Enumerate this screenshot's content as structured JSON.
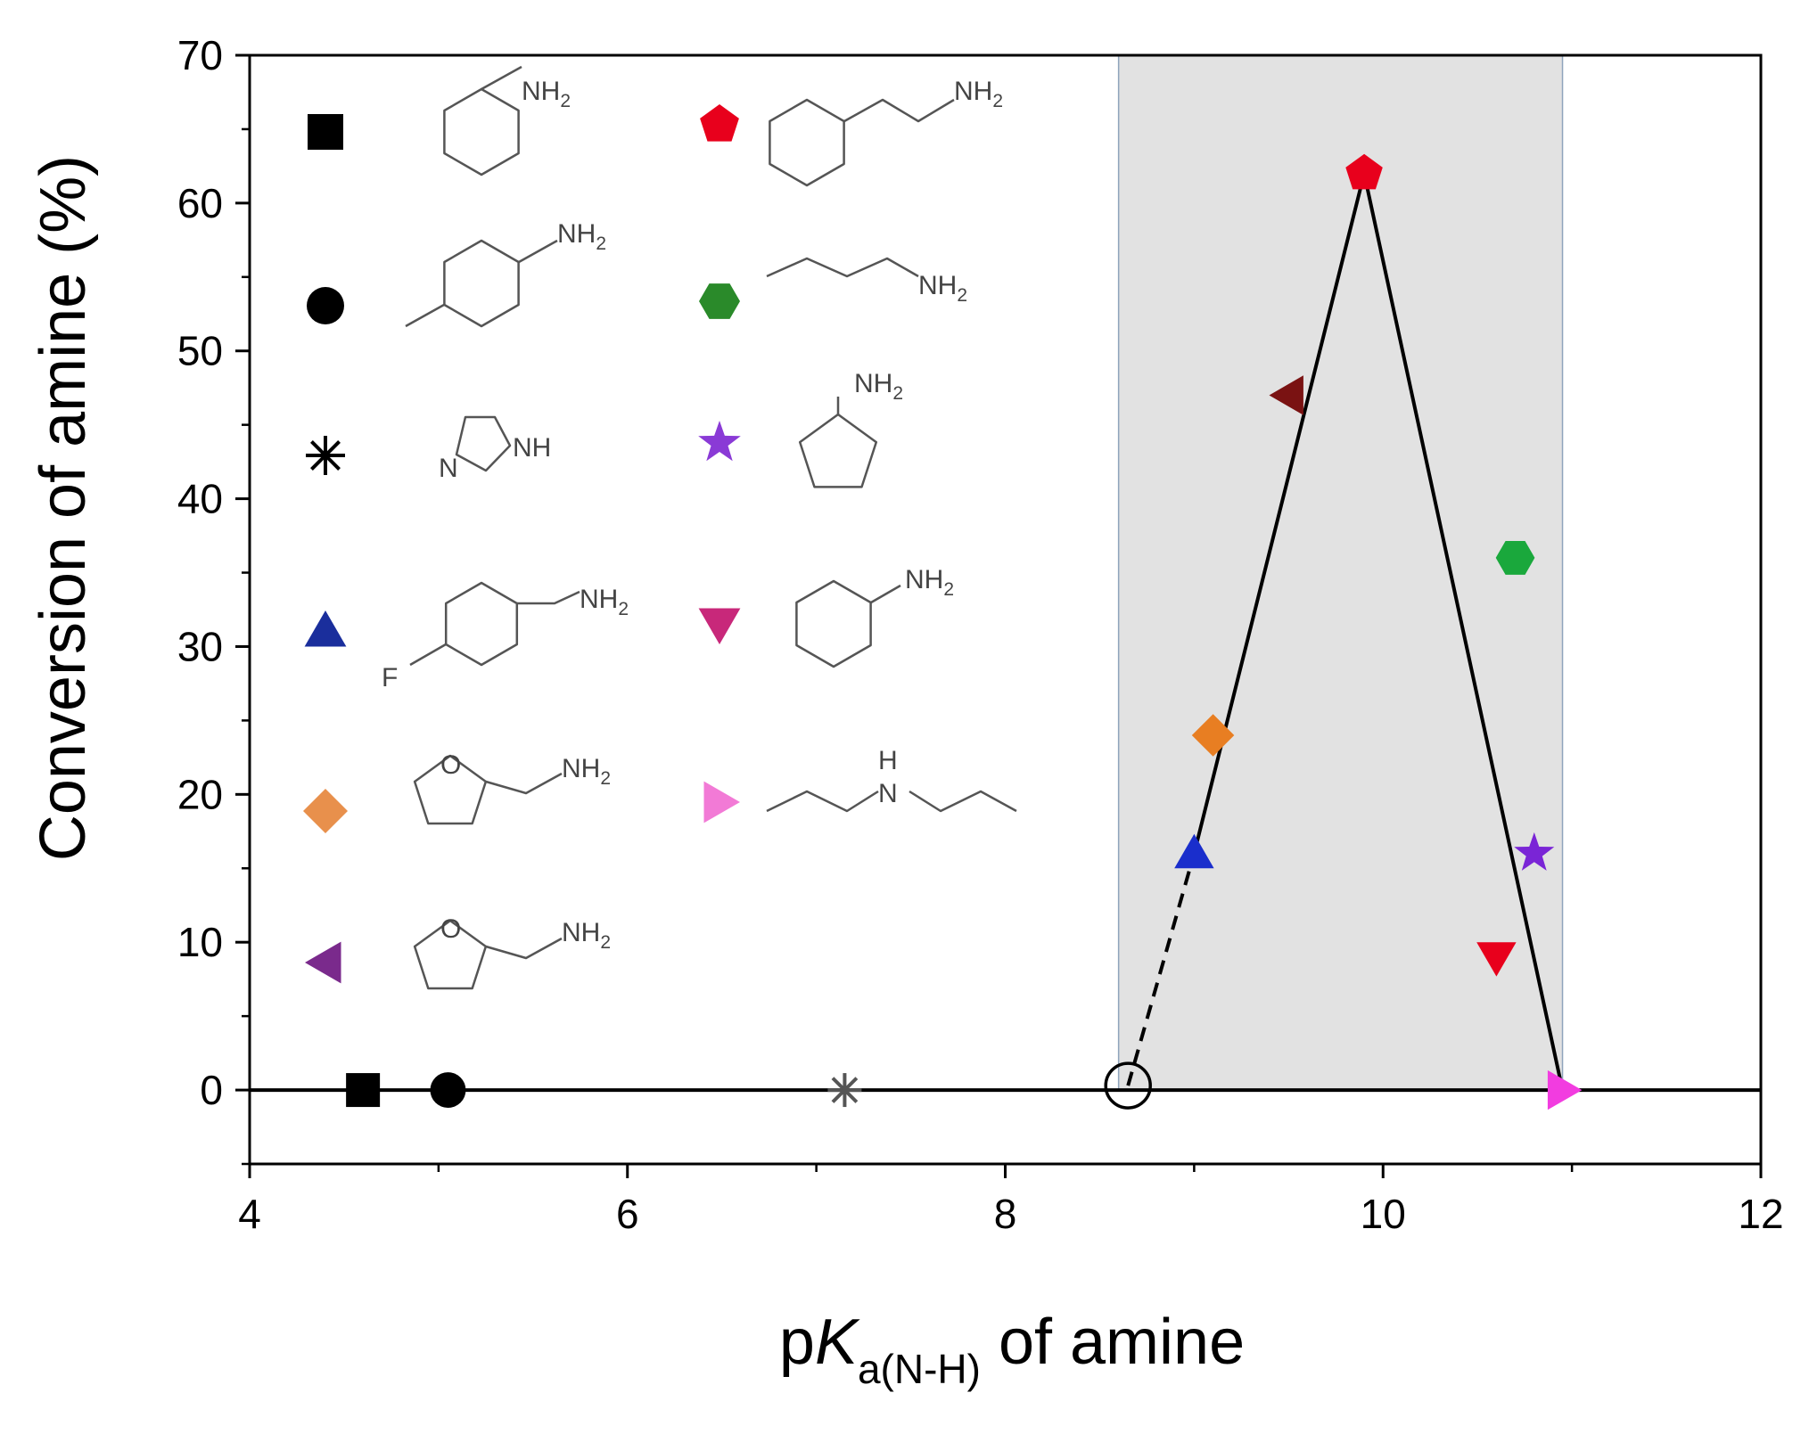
{
  "chart_data": {
    "type": "scatter",
    "xlabel": {
      "prefix": "p",
      "italic": "K",
      "sub": "a(N-H)",
      "suffix": " of amine"
    },
    "ylabel": "Conversion of amine (%)",
    "xlim": [
      4,
      12
    ],
    "ylim": [
      -5,
      70
    ],
    "xticks": [
      4,
      6,
      8,
      10,
      12
    ],
    "yticks": [
      0,
      10,
      20,
      30,
      40,
      50,
      60,
      70
    ],
    "shaded_region": {
      "x": [
        8.6,
        10.95
      ],
      "y": [
        0,
        70
      ],
      "color": "#e2e2e2"
    },
    "points": [
      {
        "amine": "aniline",
        "x": 4.6,
        "y": 0,
        "marker": "square",
        "color": "#000000"
      },
      {
        "amine": "p-toluidine",
        "x": 5.05,
        "y": 0,
        "marker": "circle",
        "color": "#000000"
      },
      {
        "amine": "imidazoline",
        "x": 7.15,
        "y": 0,
        "marker": "asterisk",
        "color": "#555555"
      },
      {
        "amine": "4-fluorobenzylamine",
        "x": 9.0,
        "y": 16,
        "marker": "triangle-up",
        "color": "#1a2ecc"
      },
      {
        "amine": "furfurylamine",
        "x": 9.1,
        "y": 24,
        "marker": "diamond",
        "color": "#e87e22"
      },
      {
        "amine": "tetrahydrofurfurylamine",
        "x": 9.5,
        "y": 47,
        "marker": "triangle-left",
        "color": "#7a1212"
      },
      {
        "amine": "phenethylamine",
        "x": 9.9,
        "y": 62,
        "marker": "pentagon",
        "color": "#e8001c"
      },
      {
        "amine": "butylamine",
        "x": 10.7,
        "y": 36,
        "marker": "hexagon",
        "color": "#1aa83c"
      },
      {
        "amine": "cyclopentylamine",
        "x": 10.8,
        "y": 16,
        "marker": "star",
        "color": "#7a25d6"
      },
      {
        "amine": "cyclohexylamine",
        "x": 10.6,
        "y": 9,
        "marker": "triangle-down",
        "color": "#e8001c"
      },
      {
        "amine": "dipropylamine",
        "x": 10.95,
        "y": 0,
        "marker": "triangle-right",
        "color": "#f23ce0"
      }
    ],
    "open_circle": {
      "x": 8.65,
      "y": 0.3
    },
    "solid_baseline": {
      "y": 0,
      "x": [
        4,
        12
      ]
    },
    "dashed_line": [
      [
        8.65,
        0.3
      ],
      [
        9.0,
        16
      ]
    ],
    "solid_line": [
      [
        9.0,
        16
      ],
      [
        9.9,
        62
      ],
      [
        10.95,
        0
      ]
    ],
    "legend": {
      "placement": "upper-left",
      "entries": [
        {
          "marker": "square",
          "color": "#000000",
          "structure": "aniline",
          "label": "NH2"
        },
        {
          "marker": "circle",
          "color": "#000000",
          "structure": "p-toluidine",
          "label": "NH2"
        },
        {
          "marker": "asterisk",
          "color": "#000000",
          "structure": "imidazoline",
          "label": "NH",
          "label2": "N"
        },
        {
          "marker": "triangle-up",
          "color": "#1a2e9c",
          "structure": "4-fluorobenzylamine",
          "label": "NH2",
          "label2": "F"
        },
        {
          "marker": "diamond",
          "color": "#e8904c",
          "structure": "furfurylamine",
          "label": "NH2",
          "label2": "O"
        },
        {
          "marker": "triangle-left",
          "color": "#7a2a8c",
          "structure": "tetrahydrofurfurylamine",
          "label": "NH2",
          "label2": "O"
        },
        {
          "marker": "pentagon",
          "color": "#e8001c",
          "structure": "phenethylamine",
          "label": "NH2"
        },
        {
          "marker": "hexagon",
          "color": "#2a8a2a",
          "structure": "butylamine",
          "label": "NH2"
        },
        {
          "marker": "star",
          "color": "#8a3ad6",
          "structure": "cyclopentylamine",
          "label": "NH2"
        },
        {
          "marker": "triangle-down",
          "color": "#c8287a",
          "structure": "cyclohexylamine",
          "label": "NH2"
        },
        {
          "marker": "triangle-right",
          "color": "#f27ad6",
          "structure": "dipropylamine",
          "label": "N",
          "label2": "H"
        }
      ]
    }
  }
}
